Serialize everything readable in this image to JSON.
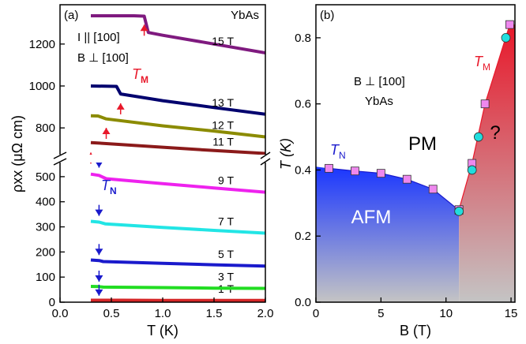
{
  "chart_data": [
    {
      "panel": "(a)",
      "type": "line",
      "material": "YbAs",
      "conditions": [
        "I || [100]",
        "B ⊥ [100]"
      ],
      "xlabel": "T (K)",
      "ylabel": "ρxx (μΩ cm)",
      "xlim": [
        0.0,
        2.0
      ],
      "ylim_lower": [
        0,
        550
      ],
      "ylim_upper": [
        680,
        1380
      ],
      "axis_break": true,
      "x_ticks": [
        "0.0",
        "0.5",
        "1.0",
        "1.5",
        "2.0"
      ],
      "y_ticks_lower": [
        "0",
        "100",
        "200",
        "300",
        "400",
        "500"
      ],
      "y_ticks_upper": [
        "800",
        "1000",
        "1200"
      ],
      "annotations": {
        "TM": "T",
        "TM_sub": "M",
        "TN": "T",
        "TN_sub": "N"
      },
      "series": [
        {
          "name": "1 T",
          "color": "#d62728",
          "x": [
            0.3,
            0.6,
            1.0,
            1.5,
            2.0
          ],
          "y": [
            8,
            8,
            7,
            7,
            7
          ]
        },
        {
          "name": "3 T",
          "color": "#22dd22",
          "x": [
            0.3,
            0.38,
            0.42,
            1.0,
            1.5,
            2.0
          ],
          "y": [
            63,
            62,
            60,
            58,
            56,
            55
          ]
        },
        {
          "name": "5 T",
          "color": "#1a1acc",
          "x": [
            0.3,
            0.38,
            0.42,
            1.0,
            1.5,
            2.0
          ],
          "y": [
            168,
            166,
            162,
            155,
            149,
            144
          ]
        },
        {
          "name": "7 T",
          "color": "#22e5e5",
          "x": [
            0.3,
            0.38,
            0.44,
            1.0,
            1.5,
            2.0
          ],
          "y": [
            322,
            319,
            312,
            298,
            286,
            275
          ]
        },
        {
          "name": "9 T",
          "color": "#ee22ee",
          "x": [
            0.3,
            0.38,
            0.45,
            1.0,
            1.5,
            2.0
          ],
          "y": [
            510,
            505,
            492,
            472,
            455,
            438
          ]
        },
        {
          "name": "11 T",
          "color": "#8b1a1a",
          "x": [
            0.3,
            1.0,
            1.5,
            2.0
          ],
          "y": [
            730,
            708,
            692,
            678
          ]
        },
        {
          "name": "12 T",
          "color": "#8b8b00",
          "x": [
            0.3,
            0.37,
            0.45,
            1.0,
            1.5,
            2.0
          ],
          "y": [
            858,
            857,
            843,
            810,
            785,
            757
          ]
        },
        {
          "name": "13 T",
          "color": "#00006e",
          "x": [
            0.3,
            0.55,
            0.59,
            1.0,
            1.5,
            2.0
          ],
          "y": [
            1000,
            998,
            962,
            930,
            897,
            865
          ]
        },
        {
          "name": "15 T",
          "color": "#7f1a7f",
          "x": [
            0.3,
            0.72,
            0.82,
            0.86,
            1.0,
            1.5,
            2.0
          ],
          "y": [
            1335,
            1335,
            1333,
            1255,
            1242,
            1200,
            1158
          ]
        }
      ],
      "TN_markers_x": [
        0.38,
        0.38,
        0.38,
        0.38,
        0.38
      ],
      "TM_markers_x": [
        0.82,
        0.59,
        0.45,
        0.3
      ]
    },
    {
      "panel": "(b)",
      "type": "phase_diagram",
      "material": "YbAs",
      "condition": "B ⊥ [100]",
      "xlabel": "B (T)",
      "ylabel": "T (K)",
      "xlim": [
        0,
        15.3
      ],
      "ylim": [
        0.0,
        0.9
      ],
      "x_ticks": [
        "0",
        "5",
        "10",
        "15"
      ],
      "y_ticks": [
        "0.0",
        "0.2",
        "0.4",
        "0.6",
        "0.8"
      ],
      "regions": [
        "AFM",
        "PM",
        "?"
      ],
      "labels": {
        "TN": "T",
        "TN_sub": "N",
        "TM": "T",
        "TM_sub": "M"
      },
      "TN_boundary": {
        "marker": "square",
        "color": "#ee88ee",
        "x": [
          1,
          3,
          5,
          7,
          9,
          11
        ],
        "y": [
          0.405,
          0.397,
          0.39,
          0.372,
          0.342,
          0.278
        ]
      },
      "TM_boundary_squares": {
        "marker": "square",
        "color": "#ee88ee",
        "x": [
          11,
          12,
          13,
          14.9
        ],
        "y": [
          0.28,
          0.42,
          0.6,
          0.84
        ]
      },
      "TM_boundary_circles": {
        "marker": "circle",
        "color": "#22dddd",
        "x": [
          11,
          12,
          12.5,
          14.6
        ],
        "y": [
          0.275,
          0.4,
          0.5,
          0.8
        ]
      }
    }
  ]
}
